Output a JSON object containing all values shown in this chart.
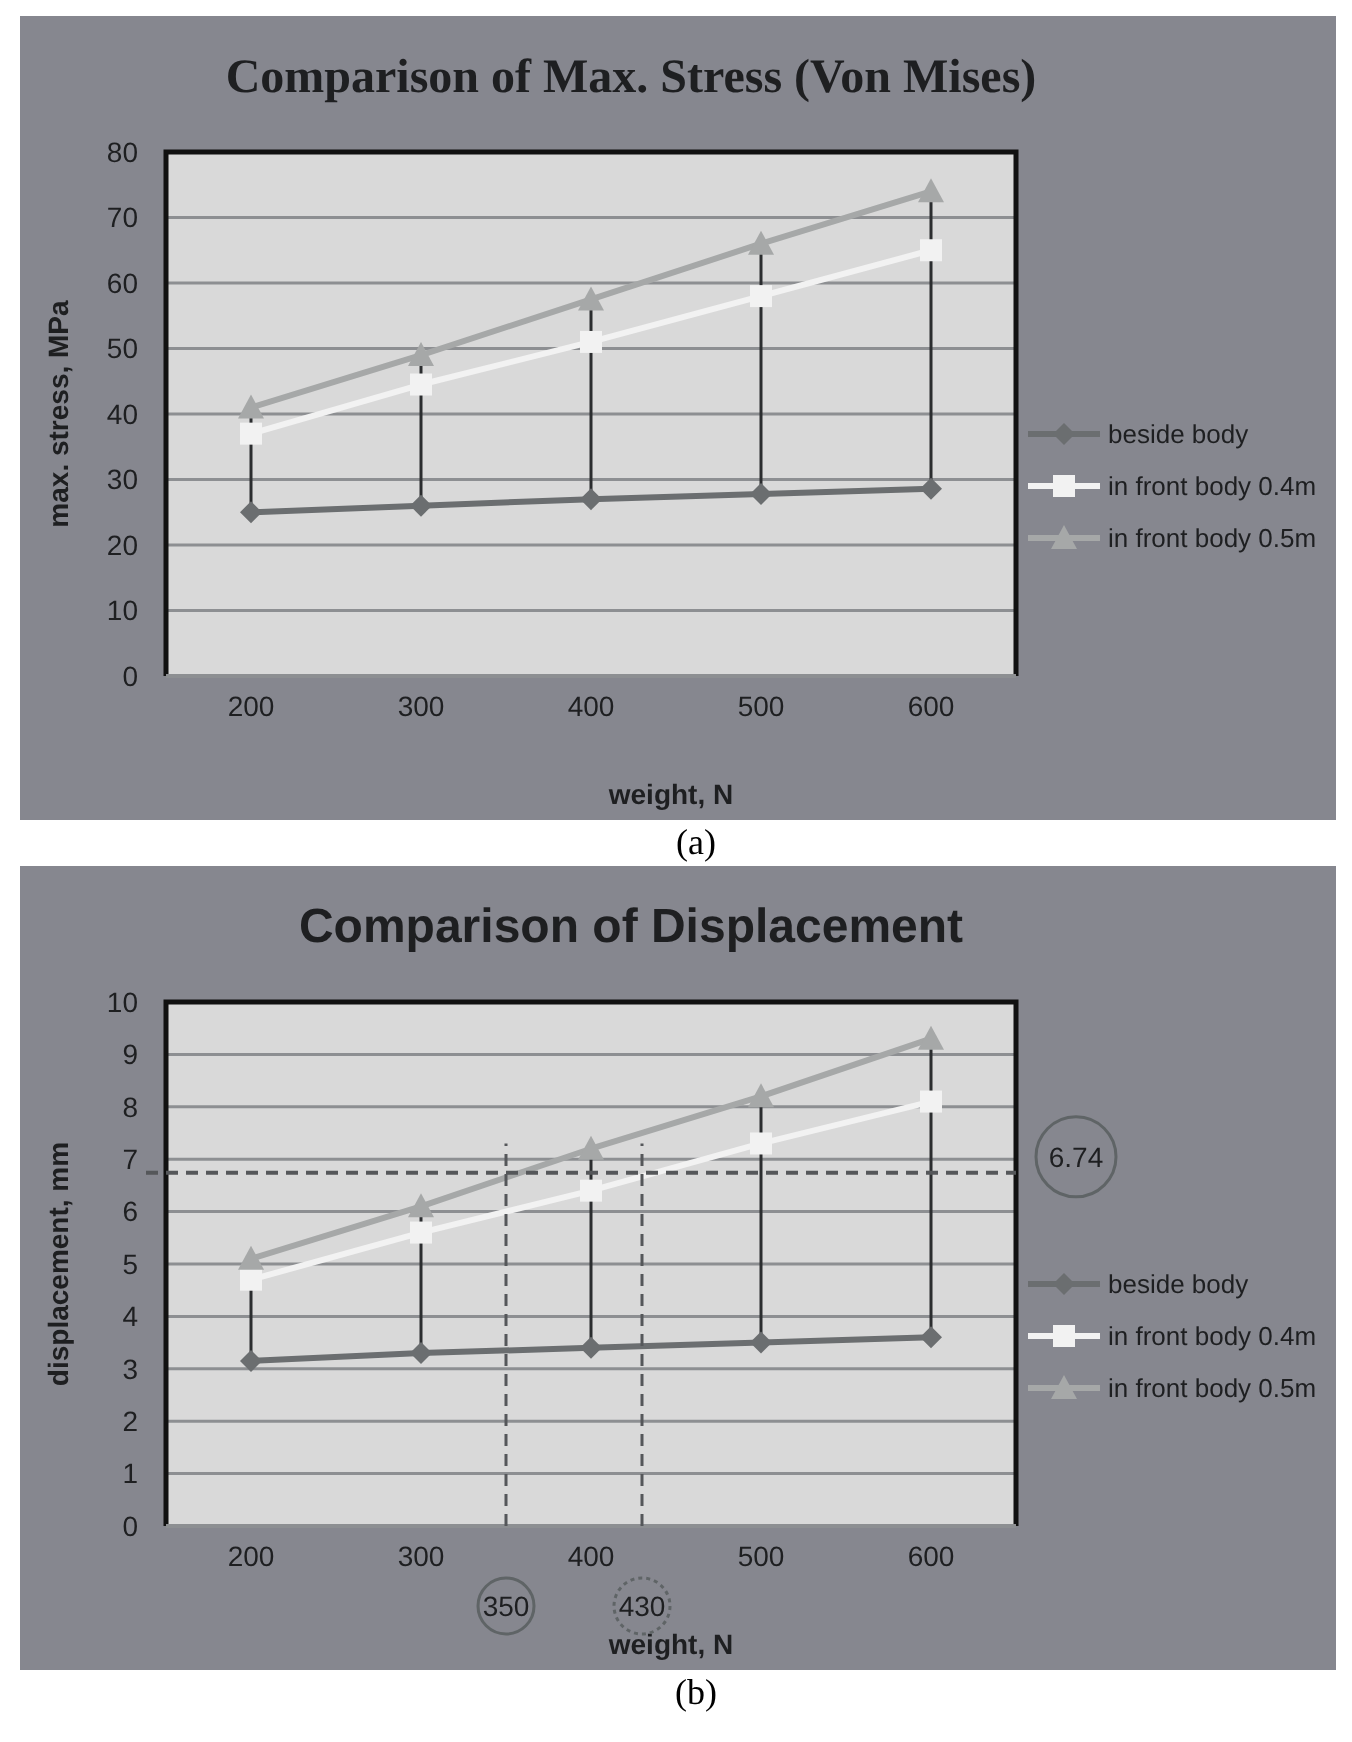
{
  "chart_data": [
    {
      "type": "line",
      "title": "Comparison of Max. Stress (Von Mises)",
      "xlabel": "weight, N",
      "ylabel": "max. stress, MPa",
      "x": [
        200,
        300,
        400,
        500,
        600
      ],
      "xlim": [
        150,
        650
      ],
      "xticks": [
        200,
        300,
        400,
        500,
        600
      ],
      "ylim": [
        0,
        80
      ],
      "yticks": [
        0,
        10,
        20,
        30,
        40,
        50,
        60,
        70,
        80
      ],
      "grid": "y",
      "legend": "right",
      "annotations": [
        "(a)"
      ],
      "series": [
        {
          "name": "beside body",
          "color": "#6b6e70",
          "marker": "diamond",
          "values": [
            25,
            26,
            27,
            27.8,
            28.6
          ]
        },
        {
          "name": "in front body 0.4m",
          "color": "#f2f2f2",
          "marker": "square",
          "values": [
            37,
            44.5,
            51,
            58,
            65
          ]
        },
        {
          "name": "in front body 0.5m",
          "color": "#a6a8a8",
          "marker": "triangle",
          "values": [
            41,
            49,
            57.5,
            66,
            74
          ]
        }
      ]
    },
    {
      "type": "line",
      "title": "Comparison of Displacement",
      "xlabel": "weight, N",
      "ylabel": "displacement, mm",
      "x": [
        200,
        300,
        400,
        500,
        600
      ],
      "xlim": [
        150,
        650
      ],
      "xticks": [
        200,
        300,
        400,
        500,
        600
      ],
      "ylim": [
        0,
        10
      ],
      "yticks": [
        0,
        1,
        2,
        3,
        4,
        5,
        6,
        7,
        8,
        9,
        10
      ],
      "grid": "y",
      "legend": "right",
      "annotations": [
        "(b)"
      ],
      "ref_lines": [
        {
          "axis": "y",
          "value": 6.74,
          "label": "6.74",
          "line_style": "dashed"
        },
        {
          "axis": "x",
          "value": 350,
          "label": "350",
          "line_style": "dashed"
        },
        {
          "axis": "x",
          "value": 430,
          "label": "430",
          "line_style": "dashed"
        }
      ],
      "series": [
        {
          "name": "beside body",
          "color": "#6b6e70",
          "marker": "diamond",
          "values": [
            3.15,
            3.3,
            3.4,
            3.5,
            3.6
          ]
        },
        {
          "name": "in front body 0.4m",
          "color": "#f2f2f2",
          "marker": "square",
          "values": [
            4.7,
            5.6,
            6.4,
            7.3,
            8.1
          ]
        },
        {
          "name": "in front body 0.5m",
          "color": "#a6a8a8",
          "marker": "triangle",
          "values": [
            5.1,
            6.1,
            7.2,
            8.2,
            9.3
          ]
        }
      ]
    }
  ]
}
